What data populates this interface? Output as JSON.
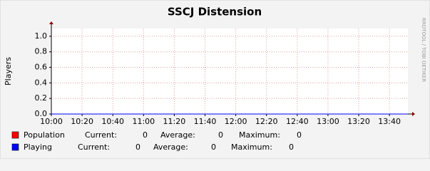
{
  "chart_data": {
    "type": "line",
    "title": "SSCJ Distension",
    "y_label": "Players",
    "watermark": "RRDTOOL / TOBI OETIKER",
    "x": [
      600,
      832
    ],
    "series": [
      {
        "name": "Population",
        "color": "#ff0000",
        "values": [
          0,
          0
        ],
        "current": 0,
        "average": 0,
        "maximum": 0
      },
      {
        "name": "Playing",
        "color": "#0000ff",
        "values": [
          0,
          0
        ],
        "current": 0,
        "average": 0,
        "maximum": 0
      }
    ],
    "stat_labels": [
      "Current:",
      "Average:",
      "Maximum:"
    ],
    "xlim": [
      600,
      832
    ],
    "xticks": [
      {
        "value": 600,
        "label": "10:00"
      },
      {
        "value": 620,
        "label": "10:20"
      },
      {
        "value": 640,
        "label": "10:40"
      },
      {
        "value": 660,
        "label": "11:00"
      },
      {
        "value": 680,
        "label": "11:20"
      },
      {
        "value": 700,
        "label": "11:40"
      },
      {
        "value": 720,
        "label": "12:00"
      },
      {
        "value": 740,
        "label": "12:20"
      },
      {
        "value": 760,
        "label": "12:40"
      },
      {
        "value": 780,
        "label": "13:00"
      },
      {
        "value": 800,
        "label": "13:20"
      },
      {
        "value": 820,
        "label": "13:40"
      }
    ],
    "ylim": [
      0,
      1.1
    ],
    "yticks": [
      {
        "value": 0,
        "label": "0.0"
      },
      {
        "value": 0.2,
        "label": "0.2"
      },
      {
        "value": 0.4,
        "label": "0.4"
      },
      {
        "value": 0.6,
        "label": "0.6"
      },
      {
        "value": 0.8,
        "label": "0.8"
      },
      {
        "value": 1,
        "label": "1.0"
      }
    ],
    "grid": true
  }
}
